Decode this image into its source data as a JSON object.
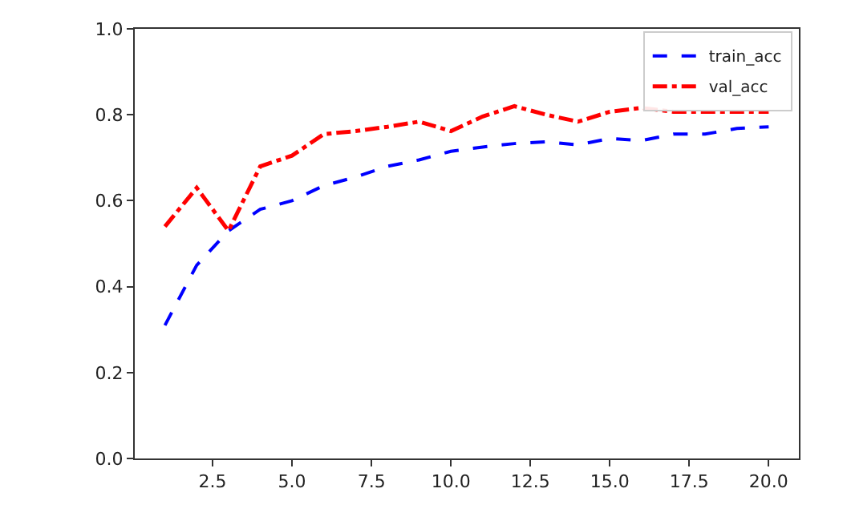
{
  "chart_data": {
    "type": "line",
    "x": [
      1,
      2,
      3,
      4,
      5,
      6,
      7,
      8,
      9,
      10,
      11,
      12,
      13,
      14,
      15,
      16,
      17,
      18,
      19,
      20
    ],
    "series": [
      {
        "name": "train_acc",
        "color": "#0000ff",
        "line_style": "dashed",
        "values": [
          0.31,
          0.45,
          0.53,
          0.58,
          0.6,
          0.635,
          0.655,
          0.68,
          0.695,
          0.715,
          0.725,
          0.733,
          0.737,
          0.73,
          0.745,
          0.74,
          0.755,
          0.755,
          0.768,
          0.772
        ]
      },
      {
        "name": "val_acc",
        "color": "#ff0000",
        "line_style": "dashdot",
        "values": [
          0.54,
          0.63,
          0.53,
          0.68,
          0.705,
          0.755,
          0.762,
          0.772,
          0.784,
          0.762,
          0.796,
          0.82,
          0.8,
          0.784,
          0.807,
          0.816,
          0.807,
          0.807,
          0.807,
          0.807
        ]
      }
    ],
    "xlim": [
      0.05,
      20.95
    ],
    "xticks": [
      {
        "value": 2.5,
        "label": "2.5"
      },
      {
        "value": 5,
        "label": "5.0"
      },
      {
        "value": 7.5,
        "label": "7.5"
      },
      {
        "value": 10,
        "label": "10.0"
      },
      {
        "value": 12.5,
        "label": "12.5"
      },
      {
        "value": 15,
        "label": "15.0"
      },
      {
        "value": 17.5,
        "label": "17.5"
      },
      {
        "value": 20,
        "label": "20.0"
      }
    ],
    "ylim": [
      0,
      1
    ],
    "yticks": [
      {
        "value": 0,
        "label": "0.0"
      },
      {
        "value": 0.2,
        "label": "0.2"
      },
      {
        "value": 0.4,
        "label": "0.4"
      },
      {
        "value": 0.6,
        "label": "0.6"
      },
      {
        "value": 0.8,
        "label": "0.8"
      },
      {
        "value": 1,
        "label": "1.0"
      }
    ],
    "legend": "top right",
    "marker": "none"
  }
}
